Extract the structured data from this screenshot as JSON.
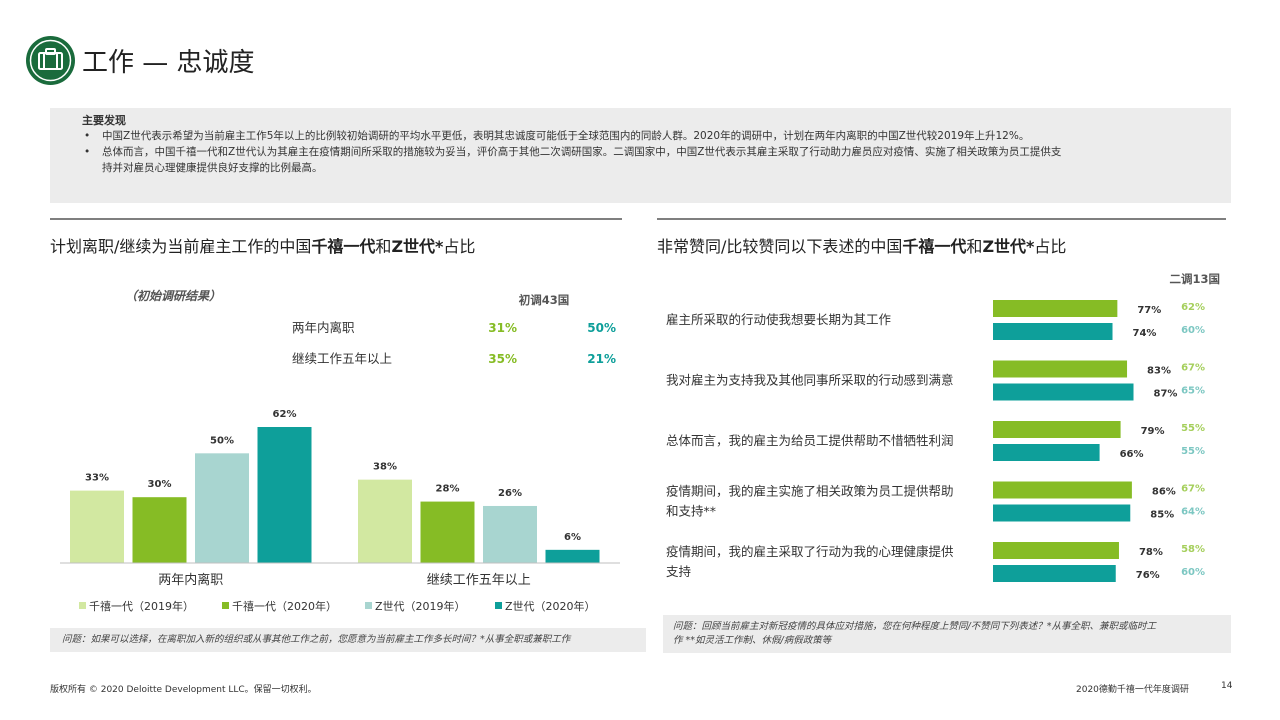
{
  "header": {
    "title": "工作 — 忠诚度",
    "icon": "briefcase-icon"
  },
  "colors": {
    "brand_green": "#1a6b3c",
    "millennial_2019": "#d2e8a1",
    "millennial_2020": "#86bc25",
    "genz_2019": "#a8d5d0",
    "genz_2020": "#0e9f9a",
    "ref_millennial": "#a5cf5c",
    "ref_genz": "#7cc7c2"
  },
  "findings": {
    "heading": "主要发现",
    "bullets": [
      "中国Z世代表示希望为当前雇主工作5年以上的比例较初始调研的平均水平更低，表明其忠诚度可能低于全球范围内的同龄人群。2020年的调研中，计划在两年内离职的中国Z世代较2019年上升12%。",
      "总体而言，中国千禧一代和Z世代认为其雇主在疫情期间所采取的措施较为妥当，评价高于其他二次调研国家。二调国家中，中国Z世代表示其雇主采取了行动助力雇员应对疫情、实施了相关政策为员工提供支",
      "持并对雇员心理健康提供良好支撑的比例最高。"
    ]
  },
  "left": {
    "title_pre": "计划离职/继续为当前雇主工作的中国",
    "title_b1": "千禧一代",
    "title_mid": "和",
    "title_b2": "Z世代*",
    "title_post": "占比",
    "note": "问题：如果可以选择，在离职加入新的组织或从事其他工作之前，您愿意为当前雇主工作多长时间？*从事全职或兼职工作"
  },
  "right": {
    "title_pre": "非常赞同/比较赞同以下表述的中国",
    "title_b1": "千禧一代",
    "title_mid": "和",
    "title_b2": "Z世代*",
    "title_post": "占比",
    "note_line1": "问题：回顾当前雇主对新冠疫情的具体应对措施，您在何种程度上赞同/不赞同下列表述？*从事全职、兼职或临时工",
    "note_line2": "作 **如灵活工作制、休假/病假政策等"
  },
  "chart_data": [
    {
      "type": "bar",
      "categories": [
        "两年内离职",
        "继续工作五年以上"
      ],
      "series": [
        {
          "name": "千禧一代（2019年）",
          "values": [
            33,
            38
          ]
        },
        {
          "name": "千禧一代（2020年）",
          "values": [
            30,
            28
          ]
        },
        {
          "name": "Z世代（2019年）",
          "values": [
            50,
            26
          ]
        },
        {
          "name": "Z世代（2020年）",
          "values": [
            62,
            6
          ]
        }
      ],
      "value_labels": [
        [
          "33%",
          "38%"
        ],
        [
          "30%",
          "28%"
        ],
        [
          "50%",
          "26%"
        ],
        [
          "62%",
          "6%"
        ]
      ],
      "ylim": [
        0,
        70
      ],
      "legend_position": "bottom",
      "reference_table": {
        "subtitle": "（初始调研结果）",
        "header": "初调43国",
        "rows": [
          {
            "label": "两年内离职",
            "millennial": "31%",
            "genz": "50%"
          },
          {
            "label": "继续工作五年以上",
            "millennial": "35%",
            "genz": "21%"
          }
        ]
      }
    },
    {
      "type": "bar",
      "orientation": "horizontal",
      "xlim": [
        0,
        100
      ],
      "ref_header": "二调13国",
      "categories": [
        "雇主所采取的行动使我想要长期为其工作",
        "我对雇主为支持我及其他同事所采取的行动感到满意",
        "总体而言，我的雇主为给员工提供帮助不惜牺牲利润",
        "疫情期间，我的雇主实施了相关政策为员工提供帮助和支持**",
        "疫情期间，我的雇主采取了行动为我的心理健康提供支持"
      ],
      "category_lines": [
        [
          "雇主所采取的行动使我想要长期为其工作"
        ],
        [
          "我对雇主为支持我及其他同事所采取的行动感到满意"
        ],
        [
          "总体而言，我的雇主为给员工提供帮助不惜牺牲利润"
        ],
        [
          "疫情期间，我的雇主实施了相关政策为员工提供帮助",
          "和支持**"
        ],
        [
          "疫情期间，我的雇主采取了行动为我的心理健康提供",
          "支持"
        ]
      ],
      "series": [
        {
          "name": "千禧一代",
          "values": [
            77,
            83,
            79,
            86,
            78
          ],
          "labels": [
            "77%",
            "83%",
            "79%",
            "86%",
            "78%"
          ],
          "ref_values": [
            "62%",
            "67%",
            "55%",
            "67%",
            "58%"
          ]
        },
        {
          "name": "Z世代",
          "values": [
            74,
            87,
            66,
            85,
            76
          ],
          "labels": [
            "74%",
            "87%",
            "66%",
            "85%",
            "76%"
          ],
          "ref_values": [
            "60%",
            "65%",
            "55%",
            "64%",
            "60%"
          ]
        }
      ]
    }
  ],
  "footer": {
    "copyright": "版权所有 © 2020 Deloitte Development LLC。保留一切权利。",
    "report": "2020德勤千禧一代年度调研",
    "page": "14"
  }
}
